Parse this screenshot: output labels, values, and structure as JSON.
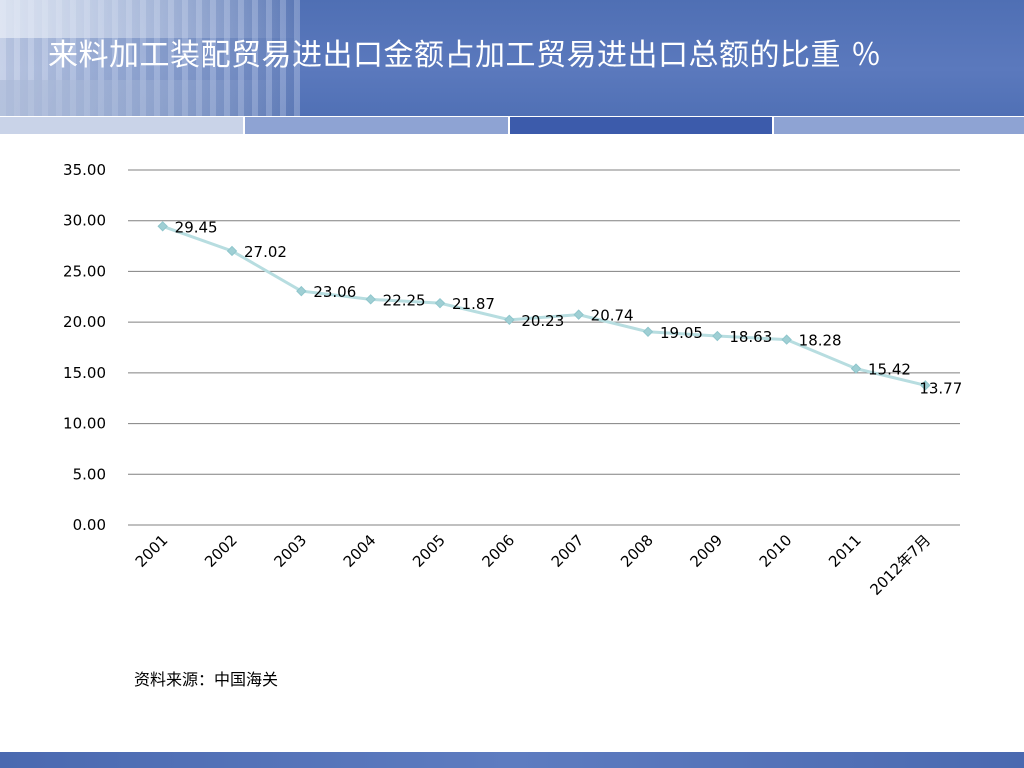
{
  "header": {
    "title": "来料加工装配贸易进出口金额占加工贸易进出口总额的比重  ％"
  },
  "colors": {
    "header_blue": "#5070b5",
    "line": "#b7dde0",
    "marker": "#9fcfd4",
    "grid": "#808080"
  },
  "chart_data": {
    "type": "line",
    "title": "",
    "xlabel": "",
    "ylabel": "",
    "categories": [
      "2001",
      "2002",
      "2003",
      "2004",
      "2005",
      "2006",
      "2007",
      "2008",
      "2009",
      "2010",
      "2011",
      "2012年7月"
    ],
    "values": [
      29.45,
      27.02,
      23.06,
      22.25,
      21.87,
      20.23,
      20.74,
      19.05,
      18.63,
      18.28,
      15.42,
      13.77
    ],
    "data_labels": [
      "29.45",
      "27.02",
      "23.06",
      "22.25",
      "21.87",
      "20.23",
      "20.74",
      "19.05",
      "18.63",
      "18.28",
      "15.42",
      "13.77"
    ],
    "ylim": [
      0,
      35
    ],
    "yticks": [
      0,
      5,
      10,
      15,
      20,
      25,
      30,
      35
    ],
    "ytick_labels": [
      "0.00",
      "5.00",
      "10.00",
      "15.00",
      "20.00",
      "25.00",
      "30.00",
      "35.00"
    ],
    "grid": true,
    "legend": "none"
  },
  "footer": {
    "source": "资料来源：中国海关"
  }
}
